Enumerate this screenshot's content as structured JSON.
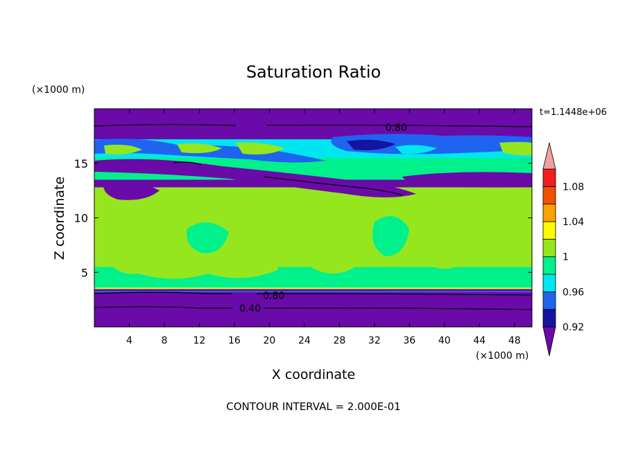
{
  "chart_data": {
    "type": "heatmap",
    "title": "Saturation Ratio",
    "xlabel": "X coordinate",
    "ylabel": "Z coordinate",
    "x_unit_label": "(×1000 m)",
    "y_unit_label": "(×1000 m)",
    "time_label": "t=1.1448e+06",
    "footer": "CONTOUR INTERVAL = 2.000E-01",
    "xlim": [
      0,
      50
    ],
    "ylim": [
      0,
      20
    ],
    "x_ticks": [
      4,
      8,
      12,
      16,
      20,
      24,
      28,
      32,
      36,
      40,
      44,
      48
    ],
    "y_ticks": [
      5,
      10,
      15
    ],
    "colorbar": {
      "levels": [
        0.92,
        0.94,
        0.96,
        0.98,
        1.0,
        1.02,
        1.04,
        1.06,
        1.08,
        1.1
      ],
      "tick_labels": [
        {
          "level": 0.92,
          "text": "0.92"
        },
        {
          "level": 0.96,
          "text": "0.96"
        },
        {
          "level": 1.0,
          "text": "1"
        },
        {
          "level": 1.04,
          "text": "1.04"
        },
        {
          "level": 1.08,
          "text": "1.08"
        }
      ],
      "colors": [
        "#6a0aa8",
        "#1414a0",
        "#1e64f0",
        "#00e6f0",
        "#00f08c",
        "#96e61e",
        "#fafa00",
        "#faa000",
        "#f05000",
        "#f01e1e",
        "#f0a0a0"
      ]
    },
    "contour_labels": [
      {
        "text": "0.80",
        "x": 34.5,
        "z": 18.3
      },
      {
        "text": "0.80",
        "x": 20.5,
        "z": 2.9
      },
      {
        "text": "0.40",
        "x": 17.8,
        "z": 1.7
      }
    ],
    "bands": [
      {
        "zmin": 0.0,
        "zmax": 3.5,
        "fill": "#6a0aa8"
      },
      {
        "zmin": 3.5,
        "zmax": 5.5,
        "fill": "#00f08c"
      },
      {
        "zmin": 5.5,
        "zmax": 12.8,
        "fill": "#96e61e"
      },
      {
        "zmin": 12.8,
        "zmax": 13.5,
        "fill": "#6a0aa8"
      },
      {
        "zmin": 13.5,
        "zmax": 15.5,
        "fill": "#00f08c"
      },
      {
        "zmin": 15.5,
        "zmax": 17.2,
        "fill": "#00e6f0"
      },
      {
        "zmin": 17.2,
        "zmax": 20.0,
        "fill": "#6a0aa8"
      }
    ]
  }
}
